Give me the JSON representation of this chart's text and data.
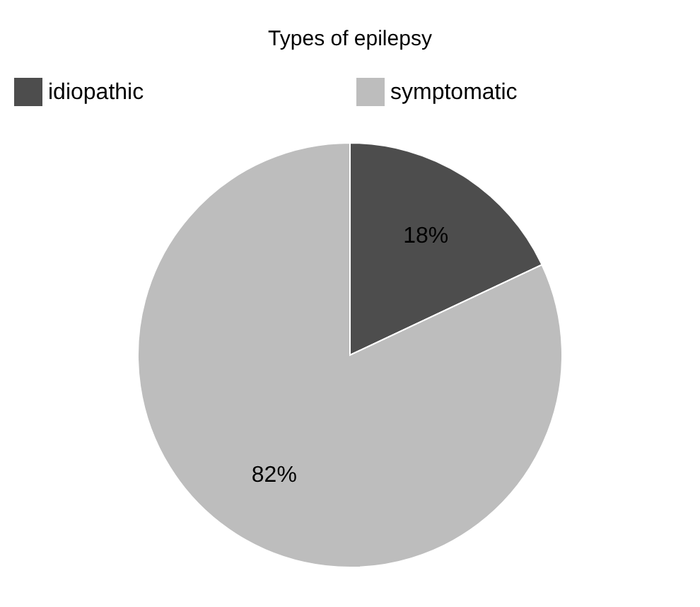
{
  "chart_data": {
    "type": "pie",
    "title": "Types of epilepsy",
    "categories": [
      "idiopathic",
      "symptomatic"
    ],
    "values": [
      18,
      82
    ],
    "colors": [
      "#4d4d4d",
      "#bdbdbd"
    ],
    "value_labels": [
      "18%",
      "82%"
    ],
    "legend": "top"
  }
}
